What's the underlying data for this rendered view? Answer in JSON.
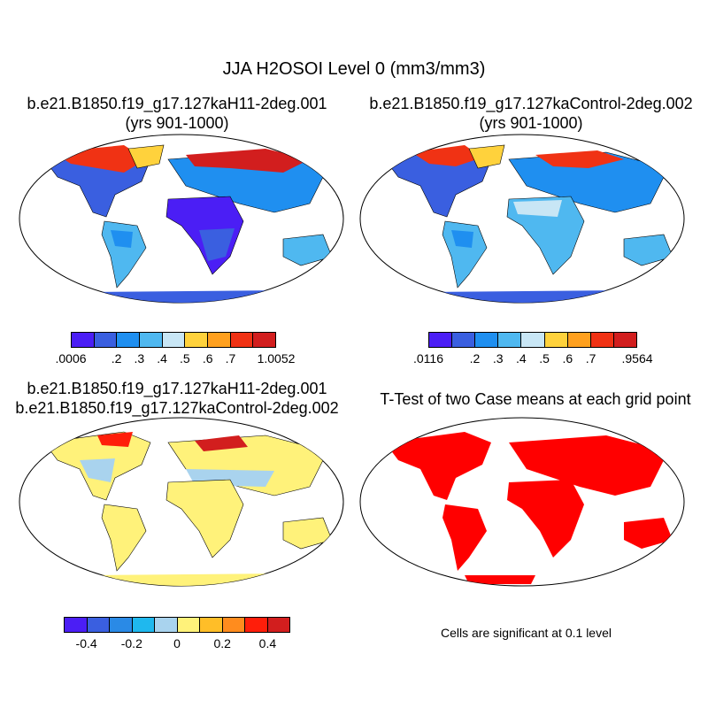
{
  "title": "JJA H2OSOI Level 0 (mm3/mm3)",
  "panels": [
    {
      "id": "case1",
      "title_line1": "b.e21.B1850.f19_g17.127kaH11-2deg.001",
      "title_line2": "(yrs 901-1000)",
      "colorbar": {
        "colors": [
          "#4b1ef5",
          "#3a5fe0",
          "#1f8ff0",
          "#4fb8f0",
          "#c8e6f5",
          "#ffd23c",
          "#ffa01e",
          "#f03214",
          "#d21e1e"
        ],
        "labels": [
          ".0006",
          ".2",
          ".3",
          ".4",
          ".5",
          ".6",
          ".7",
          "1.0052"
        ]
      }
    },
    {
      "id": "case2",
      "title_line1": "b.e21.B1850.f19_g17.127kaControl-2deg.002",
      "title_line2": "(yrs 901-1000)",
      "colorbar": {
        "colors": [
          "#4b1ef5",
          "#3a5fe0",
          "#1f8ff0",
          "#4fb8f0",
          "#c8e6f5",
          "#ffd23c",
          "#ffa01e",
          "#f03214",
          "#d21e1e"
        ],
        "labels": [
          ".0116",
          ".2",
          ".3",
          ".4",
          ".5",
          ".6",
          ".7",
          ".9564"
        ]
      }
    },
    {
      "id": "diff",
      "title_line1": "b.e21.B1850.f19_g17.127kaH11-2deg.001",
      "title_line2": "b.e21.B1850.f19_g17.127kaControl-2deg.002",
      "colorbar": {
        "colors": [
          "#4b1ef5",
          "#3a5fe0",
          "#2a8ae6",
          "#1fb8ee",
          "#a9d3ee",
          "#fff27a",
          "#ffbe28",
          "#ff8c1e",
          "#ff1e0a",
          "#d21e1e"
        ],
        "labels": [
          "-0.4",
          "-0.2",
          "0",
          "0.2",
          "0.4"
        ]
      }
    },
    {
      "id": "ttest",
      "title_line1": "T-Test of two Case means at each grid point",
      "title_line2": "",
      "note": "Cells are significant at 0.1 level"
    }
  ]
}
